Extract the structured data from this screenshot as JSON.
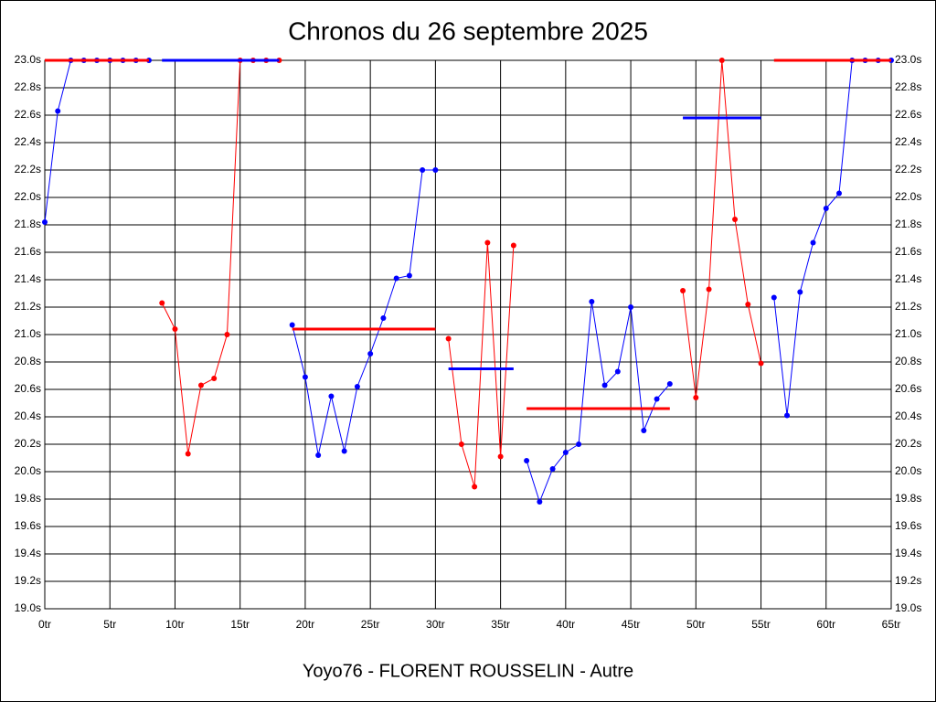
{
  "chart_data": {
    "type": "line",
    "title": "Chronos du 26 septembre 2025",
    "xlabel": "Yoyo76 - FLORENT ROUSSELIN - Autre",
    "xlim": [
      0,
      65
    ],
    "ylim": [
      19.0,
      23.0
    ],
    "grid": true,
    "xticks": [
      {
        "value": 0,
        "label": "0tr"
      },
      {
        "value": 5,
        "label": "5tr"
      },
      {
        "value": 10,
        "label": "10tr"
      },
      {
        "value": 15,
        "label": "15tr"
      },
      {
        "value": 20,
        "label": "20tr"
      },
      {
        "value": 25,
        "label": "25tr"
      },
      {
        "value": 30,
        "label": "30tr"
      },
      {
        "value": 35,
        "label": "35tr"
      },
      {
        "value": 40,
        "label": "40tr"
      },
      {
        "value": 45,
        "label": "45tr"
      },
      {
        "value": 50,
        "label": "50tr"
      },
      {
        "value": 55,
        "label": "55tr"
      },
      {
        "value": 60,
        "label": "60tr"
      },
      {
        "value": 65,
        "label": "65tr"
      }
    ],
    "yticks": [
      {
        "value": 19.0,
        "label": "19.0s"
      },
      {
        "value": 19.2,
        "label": "19.2s"
      },
      {
        "value": 19.4,
        "label": "19.4s"
      },
      {
        "value": 19.6,
        "label": "19.6s"
      },
      {
        "value": 19.8,
        "label": "19.8s"
      },
      {
        "value": 20.0,
        "label": "20.0s"
      },
      {
        "value": 20.2,
        "label": "20.2s"
      },
      {
        "value": 20.4,
        "label": "20.4s"
      },
      {
        "value": 20.6,
        "label": "20.6s"
      },
      {
        "value": 20.8,
        "label": "20.8s"
      },
      {
        "value": 21.0,
        "label": "21.0s"
      },
      {
        "value": 21.2,
        "label": "21.2s"
      },
      {
        "value": 21.4,
        "label": "21.4s"
      },
      {
        "value": 21.6,
        "label": "21.6s"
      },
      {
        "value": 21.8,
        "label": "21.8s"
      },
      {
        "value": 22.0,
        "label": "22.0s"
      },
      {
        "value": 22.2,
        "label": "22.2s"
      },
      {
        "value": 22.4,
        "label": "22.4s"
      },
      {
        "value": 22.6,
        "label": "22.6s"
      },
      {
        "value": 22.8,
        "label": "22.8s"
      },
      {
        "value": 23.0,
        "label": "23.0s"
      }
    ],
    "series": [
      {
        "color": "#0000ff",
        "x": [
          0,
          1,
          2,
          3,
          4,
          5,
          6,
          7,
          8
        ],
        "values": [
          21.82,
          22.63,
          23.0,
          23.0,
          23.0,
          23.0,
          23.0,
          23.0,
          23.0
        ]
      },
      {
        "color": "#ff0000",
        "x": [
          9,
          10,
          11,
          12,
          13,
          14,
          15,
          16,
          17,
          18
        ],
        "values": [
          21.23,
          21.04,
          20.13,
          20.63,
          20.68,
          21.0,
          23.0,
          23.0,
          23.0,
          23.0
        ]
      },
      {
        "color": "#0000ff",
        "x": [
          19,
          20,
          21,
          22,
          23,
          24,
          25,
          26,
          27,
          28,
          29,
          30
        ],
        "values": [
          21.07,
          20.69,
          20.12,
          20.55,
          20.15,
          20.62,
          20.86,
          21.12,
          21.41,
          21.43,
          22.2,
          22.2
        ]
      },
      {
        "color": "#ff0000",
        "x": [
          31,
          32,
          33,
          34,
          35,
          36
        ],
        "values": [
          20.97,
          20.2,
          19.89,
          21.67,
          20.11,
          21.65
        ]
      },
      {
        "color": "#0000ff",
        "x": [
          37,
          38,
          39,
          40,
          41,
          42,
          43,
          44,
          45,
          46,
          47,
          48
        ],
        "values": [
          20.08,
          19.78,
          20.02,
          20.14,
          20.2,
          21.24,
          20.63,
          20.73,
          21.2,
          20.3,
          20.53,
          20.64
        ]
      },
      {
        "color": "#ff0000",
        "x": [
          49,
          50,
          51,
          52,
          53,
          54,
          55
        ],
        "values": [
          21.32,
          20.54,
          21.33,
          23.0,
          21.84,
          21.22,
          20.79
        ]
      },
      {
        "color": "#0000ff",
        "x": [
          56,
          57,
          58,
          59,
          60,
          61,
          62,
          63,
          64,
          65
        ],
        "values": [
          21.27,
          20.41,
          21.31,
          21.67,
          21.92,
          22.03,
          23.0,
          23.0,
          23.0,
          23.0
        ]
      }
    ],
    "averages": [
      {
        "color": "#ff0000",
        "x": [
          0,
          8
        ],
        "value": 23.0
      },
      {
        "color": "#0000ff",
        "x": [
          9,
          18
        ],
        "value": 23.0
      },
      {
        "color": "#ff0000",
        "x": [
          19,
          30
        ],
        "value": 21.04
      },
      {
        "color": "#0000ff",
        "x": [
          31,
          36
        ],
        "value": 20.75
      },
      {
        "color": "#ff0000",
        "x": [
          37,
          48
        ],
        "value": 20.46
      },
      {
        "color": "#0000ff",
        "x": [
          49,
          55
        ],
        "value": 22.58
      },
      {
        "color": "#ff0000",
        "x": [
          56,
          65
        ],
        "value": 23.0
      }
    ]
  }
}
